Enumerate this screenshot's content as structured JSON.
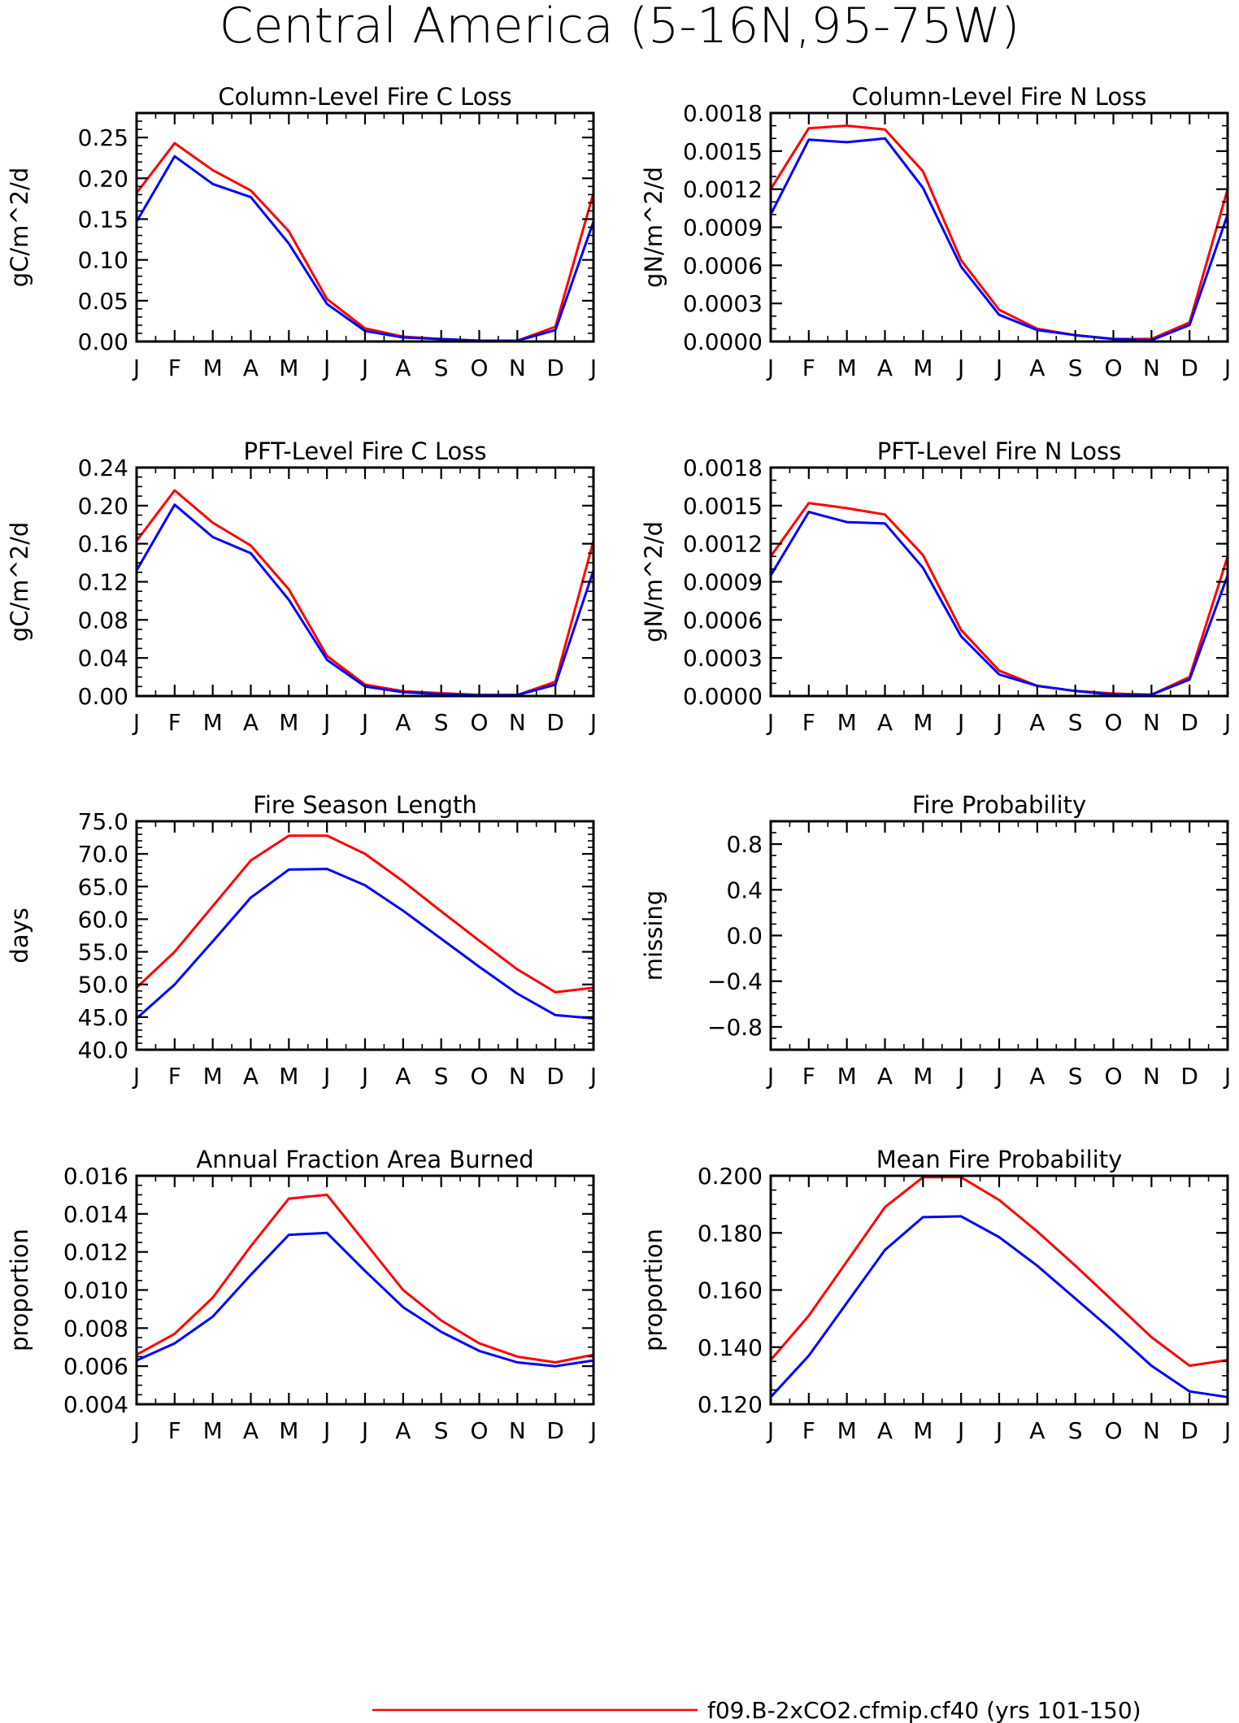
{
  "page_title": "Central America (5-16N,95-75W)",
  "legend": {
    "label": "f09.B-2xCO2.cfmip.cf40 (yrs 101-150)",
    "color": "#ff0000"
  },
  "colors": {
    "series_a": "#ff0000",
    "series_b": "#0000ff"
  },
  "chart_data": [
    {
      "type": "line",
      "title": "Column-Level Fire C Loss",
      "ylabel": "gC/m^2/d",
      "x": [
        "J",
        "F",
        "M",
        "A",
        "M",
        "J",
        "J",
        "A",
        "S",
        "O",
        "N",
        "D",
        "J"
      ],
      "ylim": [
        0,
        0.28
      ],
      "yticks": [
        0.0,
        0.05,
        0.1,
        0.15,
        0.2,
        0.25
      ],
      "ytick_labels": [
        "0.00",
        "0.05",
        "0.10",
        "0.15",
        "0.20",
        "0.25"
      ],
      "yminor": 0.01,
      "series": [
        {
          "values": [
            0.182,
            0.243,
            0.21,
            0.185,
            0.135,
            0.052,
            0.016,
            0.006,
            0.003,
            0.001,
            0.001,
            0.018,
            0.182
          ]
        },
        {
          "values": [
            0.147,
            0.227,
            0.193,
            0.177,
            0.12,
            0.046,
            0.013,
            0.005,
            0.003,
            0.001,
            0.001,
            0.014,
            0.147
          ]
        }
      ]
    },
    {
      "type": "line",
      "title": "Column-Level Fire N Loss",
      "ylabel": "gN/m^2/d",
      "x": [
        "J",
        "F",
        "M",
        "A",
        "M",
        "J",
        "J",
        "A",
        "S",
        "O",
        "N",
        "D",
        "J"
      ],
      "ylim": [
        0,
        0.0018
      ],
      "yticks": [
        0.0,
        0.0003,
        0.0006,
        0.0009,
        0.0012,
        0.0015,
        0.0018
      ],
      "ytick_labels": [
        "0.0000",
        "0.0003",
        "0.0006",
        "0.0009",
        "0.0012",
        "0.0015",
        "0.0018"
      ],
      "yminor": 0.0001,
      "series": [
        {
          "values": [
            0.0012,
            0.00168,
            0.0017,
            0.00167,
            0.00134,
            0.00064,
            0.00025,
            0.0001,
            5e-05,
            2e-05,
            2e-05,
            0.00015,
            0.0012
          ]
        },
        {
          "values": [
            0.001,
            0.00159,
            0.00157,
            0.0016,
            0.00121,
            0.00059,
            0.00021,
            9e-05,
            5e-05,
            2e-05,
            1e-05,
            0.00013,
            0.001
          ]
        }
      ]
    },
    {
      "type": "line",
      "title": "PFT-Level Fire C Loss",
      "ylabel": "gC/m^2/d",
      "x": [
        "J",
        "F",
        "M",
        "A",
        "M",
        "J",
        "J",
        "A",
        "S",
        "O",
        "N",
        "D",
        "J"
      ],
      "ylim": [
        0,
        0.24
      ],
      "yticks": [
        0.0,
        0.04,
        0.08,
        0.12,
        0.16,
        0.2,
        0.24
      ],
      "ytick_labels": [
        "0.00",
        "0.04",
        "0.08",
        "0.12",
        "0.16",
        "0.20",
        "0.24"
      ],
      "yminor": 0.01,
      "series": [
        {
          "values": [
            0.163,
            0.216,
            0.182,
            0.158,
            0.112,
            0.042,
            0.012,
            0.005,
            0.003,
            0.001,
            0.001,
            0.015,
            0.163
          ]
        },
        {
          "values": [
            0.132,
            0.201,
            0.167,
            0.15,
            0.101,
            0.038,
            0.01,
            0.004,
            0.002,
            0.001,
            0.001,
            0.012,
            0.132
          ]
        }
      ]
    },
    {
      "type": "line",
      "title": "PFT-Level Fire N Loss",
      "ylabel": "gN/m^2/d",
      "x": [
        "J",
        "F",
        "M",
        "A",
        "M",
        "J",
        "J",
        "A",
        "S",
        "O",
        "N",
        "D",
        "J"
      ],
      "ylim": [
        0,
        0.0018
      ],
      "yticks": [
        0.0,
        0.0003,
        0.0006,
        0.0009,
        0.0012,
        0.0015,
        0.0018
      ],
      "ytick_labels": [
        "0.0000",
        "0.0003",
        "0.0006",
        "0.0009",
        "0.0012",
        "0.0015",
        "0.0018"
      ],
      "yminor": 0.0001,
      "series": [
        {
          "values": [
            0.0011,
            0.00152,
            0.00148,
            0.00143,
            0.00111,
            0.00052,
            0.0002,
            8e-05,
            4e-05,
            2e-05,
            1e-05,
            0.00015,
            0.0011
          ]
        },
        {
          "values": [
            0.00095,
            0.00145,
            0.00137,
            0.00136,
            0.00101,
            0.00047,
            0.00017,
            8e-05,
            4e-05,
            1e-05,
            1e-05,
            0.00013,
            0.00095
          ]
        }
      ]
    },
    {
      "type": "line",
      "title": "Fire Season Length",
      "ylabel": "days",
      "x": [
        "J",
        "F",
        "M",
        "A",
        "M",
        "J",
        "J",
        "A",
        "S",
        "O",
        "N",
        "D",
        "J"
      ],
      "ylim": [
        40,
        75
      ],
      "yticks": [
        40,
        45,
        50,
        55,
        60,
        65,
        70,
        75
      ],
      "ytick_labels": [
        "40.0",
        "45.0",
        "50.0",
        "55.0",
        "60.0",
        "65.0",
        "70.0",
        "75.0"
      ],
      "yminor": 1,
      "series": [
        {
          "values": [
            49.5,
            55.0,
            62.0,
            69.0,
            72.8,
            72.8,
            70.0,
            65.8,
            61.2,
            56.7,
            52.3,
            48.8,
            49.5
          ]
        },
        {
          "values": [
            44.8,
            50.0,
            56.6,
            63.3,
            67.6,
            67.7,
            65.2,
            61.3,
            57.0,
            52.7,
            48.6,
            45.3,
            44.8
          ]
        }
      ]
    },
    {
      "type": "line",
      "title": "Fire Probability",
      "ylabel": "missing",
      "x": [
        "J",
        "F",
        "M",
        "A",
        "M",
        "J",
        "J",
        "A",
        "S",
        "O",
        "N",
        "D",
        "J"
      ],
      "ylim": [
        -1.0,
        1.0
      ],
      "yticks": [
        -0.8,
        -0.4,
        0.0,
        0.4,
        0.8
      ],
      "ytick_labels": [
        "−0.8",
        "−0.4",
        "0.0",
        "0.4",
        "0.8"
      ],
      "yminor": 0.1,
      "series": []
    },
    {
      "type": "line",
      "title": "Annual Fraction Area Burned",
      "ylabel": "proportion",
      "x": [
        "J",
        "F",
        "M",
        "A",
        "M",
        "J",
        "J",
        "A",
        "S",
        "O",
        "N",
        "D",
        "J"
      ],
      "ylim": [
        0.004,
        0.016
      ],
      "yticks": [
        0.004,
        0.006,
        0.008,
        0.01,
        0.012,
        0.014,
        0.016
      ],
      "ytick_labels": [
        "0.004",
        "0.006",
        "0.008",
        "0.010",
        "0.012",
        "0.014",
        "0.016"
      ],
      "yminor": 0.0005,
      "series": [
        {
          "values": [
            0.0066,
            0.0077,
            0.0096,
            0.0123,
            0.0148,
            0.015,
            0.0125,
            0.01,
            0.0084,
            0.0072,
            0.0065,
            0.0062,
            0.0066
          ]
        },
        {
          "values": [
            0.0063,
            0.0072,
            0.0086,
            0.0108,
            0.0129,
            0.013,
            0.011,
            0.0091,
            0.0078,
            0.0068,
            0.0062,
            0.006,
            0.0063
          ]
        }
      ]
    },
    {
      "type": "line",
      "title": "Mean Fire Probability",
      "ylabel": "proportion",
      "x": [
        "J",
        "F",
        "M",
        "A",
        "M",
        "J",
        "J",
        "A",
        "S",
        "O",
        "N",
        "D",
        "J"
      ],
      "ylim": [
        0.12,
        0.2
      ],
      "yticks": [
        0.12,
        0.14,
        0.16,
        0.18,
        0.2
      ],
      "ytick_labels": [
        "0.120",
        "0.140",
        "0.160",
        "0.180",
        "0.200"
      ],
      "yminor": 0.005,
      "series": [
        {
          "values": [
            0.1355,
            0.151,
            0.17,
            0.189,
            0.1995,
            0.1995,
            0.1915,
            0.1805,
            0.1685,
            0.156,
            0.1435,
            0.1335,
            0.1355
          ]
        },
        {
          "values": [
            0.1225,
            0.137,
            0.1555,
            0.174,
            0.1855,
            0.1858,
            0.1785,
            0.1685,
            0.157,
            0.1455,
            0.1335,
            0.1245,
            0.1225
          ]
        }
      ]
    }
  ]
}
